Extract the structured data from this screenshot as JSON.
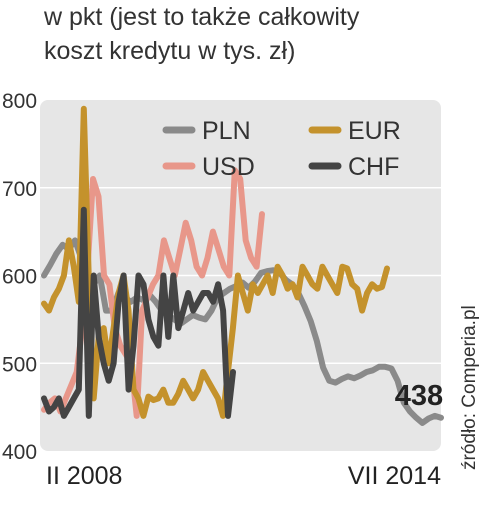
{
  "title": {
    "line1": "w pkt (jest to także całkowity",
    "line2": "koszt kredytu w tys. zł)"
  },
  "source": "źródło: Comperia.pl",
  "colors": {
    "PLN": "#8a8a8a",
    "USD": "#e8978a",
    "EUR": "#c4922c",
    "CHF": "#444444",
    "plot_bg": "#e6e6e6",
    "grid": "#ffffff"
  },
  "chart_data": {
    "type": "line",
    "x_start_label": "II 2008",
    "x_end_label": "VII 2014",
    "ylim": [
      400,
      800
    ],
    "yticks": [
      400,
      500,
      600,
      700,
      800
    ],
    "grid": true,
    "legend_position": "top",
    "final_value_label": "438",
    "series": [
      {
        "name": "PLN",
        "values": [
          600,
          612,
          625,
          635,
          630,
          640,
          620,
          600,
          590,
          600,
          560,
          560,
          580,
          575,
          570,
          575,
          572,
          578,
          570,
          560,
          555,
          550,
          545,
          550,
          555,
          552,
          550,
          560,
          575,
          580,
          585,
          588,
          592,
          586,
          593,
          603,
          605,
          606,
          603,
          595,
          590,
          580,
          565,
          548,
          525,
          495,
          480,
          478,
          482,
          485,
          483,
          486,
          490,
          492,
          496,
          496,
          494,
          480,
          455,
          445,
          438,
          432,
          437,
          440,
          438
        ]
      },
      {
        "name": "USD",
        "values": [
          447,
          455,
          460,
          445,
          460,
          475,
          490,
          540,
          610,
          710,
          690,
          600,
          590,
          540,
          520,
          510,
          500,
          440,
          560,
          575,
          590,
          600,
          640,
          620,
          600,
          630,
          660,
          640,
          610,
          600,
          620,
          650,
          630,
          610,
          600,
          720,
          710,
          640,
          620,
          610,
          670
        ]
      },
      {
        "name": "EUR",
        "values": [
          568,
          560,
          575,
          585,
          600,
          640,
          610,
          570,
          790,
          600,
          460,
          530,
          540,
          500,
          540,
          580,
          600,
          560,
          470,
          460,
          440,
          462,
          458,
          460,
          470,
          455,
          455,
          465,
          480,
          470,
          460,
          470,
          490,
          480,
          470,
          460,
          440,
          490,
          540,
          600,
          580,
          560,
          590,
          580,
          590,
          600,
          580,
          610,
          600,
          585,
          590,
          575,
          610,
          600,
          590,
          585,
          610,
          600,
          590,
          580,
          610,
          608,
          590,
          585,
          560,
          580,
          590,
          585,
          587,
          608
        ]
      },
      {
        "name": "CHF",
        "values": [
          460,
          445,
          450,
          460,
          440,
          450,
          460,
          470,
          675,
          440,
          600,
          530,
          500,
          480,
          500,
          570,
          600,
          470,
          520,
          600,
          590,
          550,
          530,
          520,
          600,
          530,
          600,
          540,
          560,
          580,
          560,
          570,
          580,
          580,
          570,
          590,
          560,
          440,
          490
        ]
      }
    ]
  }
}
